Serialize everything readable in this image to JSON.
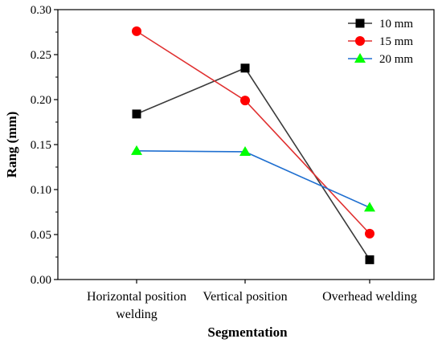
{
  "chart_data": {
    "type": "line",
    "title": "",
    "xlabel": "Segmentation",
    "ylabel": "Rang (mm)",
    "categories": [
      [
        "Horizontal position",
        "welding"
      ],
      [
        "Vertical position"
      ],
      [
        "Overhead welding"
      ]
    ],
    "ylim": [
      0.0,
      0.3
    ],
    "yticks": [
      "0.00",
      "0.05",
      "0.10",
      "0.15",
      "0.20",
      "0.25",
      "0.30"
    ],
    "grid": false,
    "legend_position": "top-right",
    "series": [
      {
        "name": "10 mm",
        "values": [
          0.184,
          0.235,
          0.022
        ],
        "color": "#3a3a3a",
        "marker_color": "#000000",
        "marker": "square"
      },
      {
        "name": "15 mm",
        "values": [
          0.276,
          0.199,
          0.051
        ],
        "color": "#e03030",
        "marker_color": "#ff0000",
        "marker": "circle"
      },
      {
        "name": "20 mm",
        "values": [
          0.143,
          0.142,
          0.08
        ],
        "color": "#1f6fd0",
        "marker_color": "#00ff00",
        "marker": "triangle"
      }
    ]
  }
}
